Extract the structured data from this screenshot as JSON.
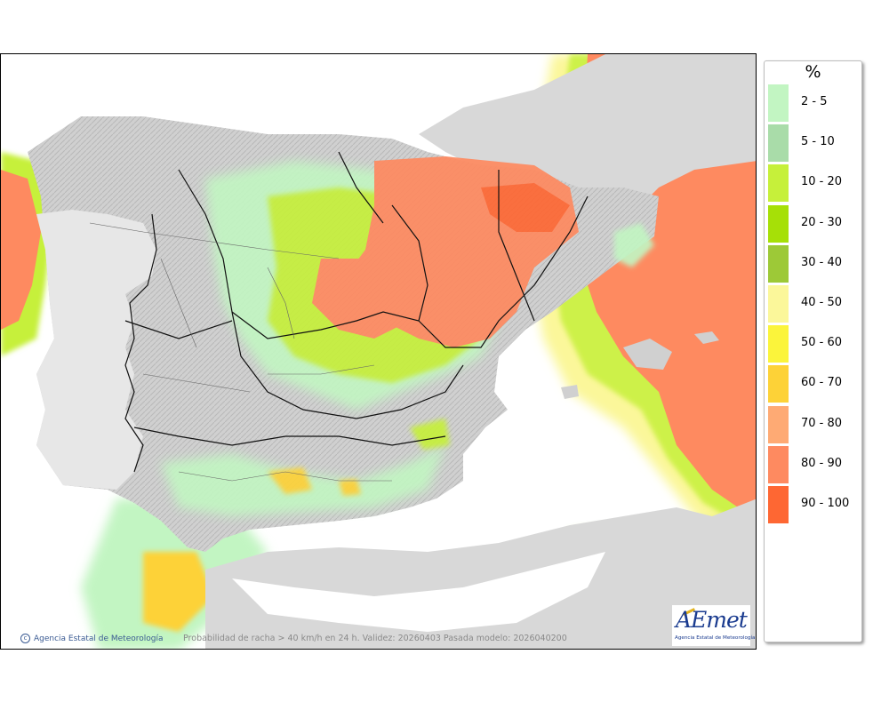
{
  "legend": {
    "title": "%",
    "items": [
      {
        "label": "2 - 5",
        "color": "#c2f5c2"
      },
      {
        "label": "5 - 10",
        "color": "#a9dca9"
      },
      {
        "label": "10 - 20",
        "color": "#c6f03a"
      },
      {
        "label": "20 - 30",
        "color": "#a6e007"
      },
      {
        "label": "30 - 40",
        "color": "#9dc937"
      },
      {
        "label": "40 - 50",
        "color": "#fbf79a"
      },
      {
        "label": "50 - 60",
        "color": "#fbf43b"
      },
      {
        "label": "60 - 70",
        "color": "#fdd237"
      },
      {
        "label": "70 - 80",
        "color": "#feaa74"
      },
      {
        "label": "80 - 90",
        "color": "#fe8a60"
      },
      {
        "label": "90 - 100",
        "color": "#fe6733"
      }
    ]
  },
  "map": {
    "credit": "Agencia Estatal de Meteorología",
    "caption": "Probabilidad de racha > 40 km/h en 24 h. Validez: 20260403 Pasada modelo: 2026040200",
    "land_color": "#d8d8d8",
    "sea_color": "#ffffff"
  },
  "logo": {
    "word": "AEmet",
    "subtitle": "Agencia Estatal de Meteorología"
  }
}
